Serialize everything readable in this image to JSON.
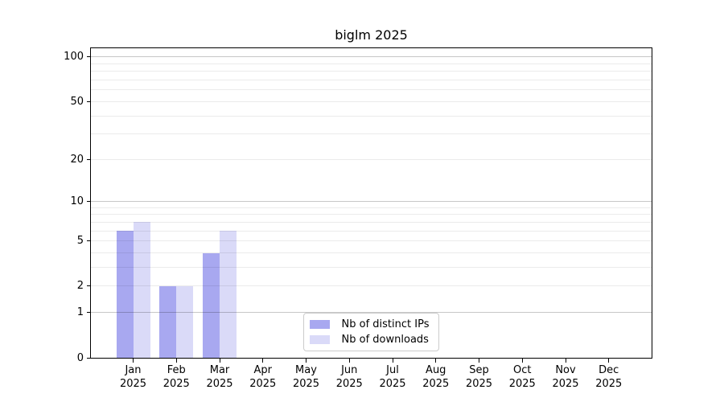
{
  "figure": {
    "title": "biglm 2025"
  },
  "chart_data": {
    "type": "bar",
    "title": "biglm 2025",
    "months": [
      "Jan",
      "Feb",
      "Mar",
      "Apr",
      "May",
      "Jun",
      "Jul",
      "Aug",
      "Sep",
      "Oct",
      "Nov",
      "Dec"
    ],
    "year": "2025",
    "series": [
      {
        "name": "Nb of distinct IPs",
        "color": "#a8a8f0",
        "values": [
          6,
          2,
          4,
          0,
          0,
          0,
          0,
          0,
          0,
          0,
          0,
          0
        ]
      },
      {
        "name": "Nb of downloads",
        "color": "#dadaf8",
        "values": [
          7,
          2,
          6,
          0,
          0,
          0,
          0,
          0,
          0,
          0,
          0,
          0
        ]
      }
    ],
    "y_axis": {
      "scale": "log1p",
      "ticks": [
        0,
        1,
        2,
        5,
        10,
        20,
        50,
        100
      ],
      "major_gridlines": [
        1,
        10,
        100
      ],
      "minor_gridlines": [
        2,
        3,
        4,
        5,
        6,
        7,
        8,
        9,
        20,
        30,
        40,
        50,
        60,
        70,
        80,
        90
      ],
      "ylim": [
        0,
        115
      ]
    },
    "x_axis": {
      "tick_label_lines": 2
    },
    "legend": {
      "position": "lower center"
    },
    "grid": true,
    "background": "#ffffff"
  }
}
